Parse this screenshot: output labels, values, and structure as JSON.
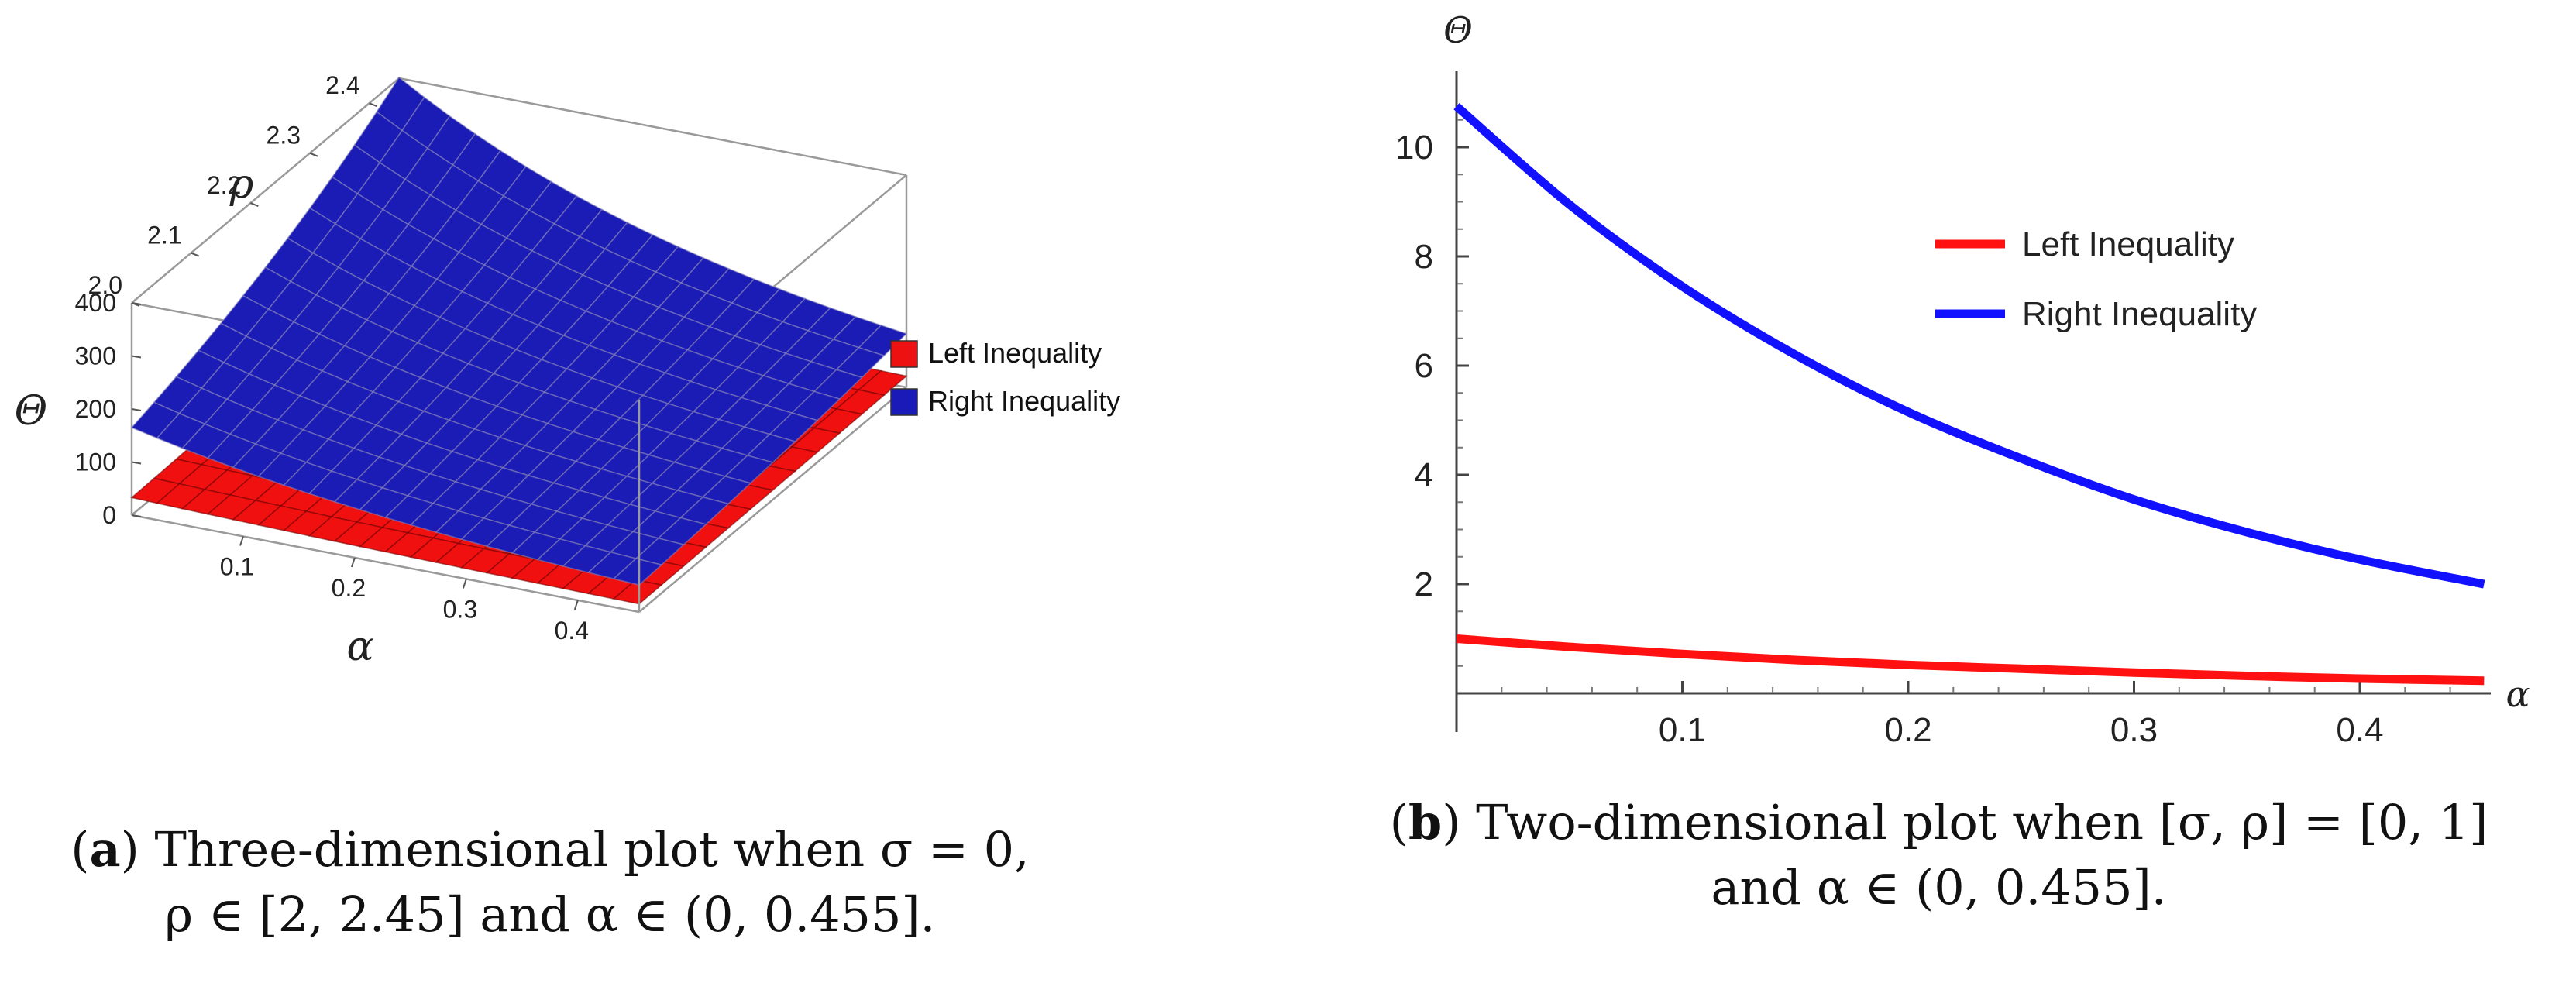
{
  "chart_data": [
    {
      "type": "surface",
      "panel_label": "a",
      "caption_line1": "Three-dimensional plot when σ = 0,",
      "caption_line2": "ρ ∈ [2, 2.45] and α ∈ (0, 0.455].",
      "x_axis": {
        "label": "α",
        "ticks": [
          "0.1",
          "0.2",
          "0.3",
          "0.4"
        ],
        "range": [
          0,
          0.455
        ]
      },
      "y_axis": {
        "label": "ρ",
        "ticks": [
          "2.0",
          "2.1",
          "2.2",
          "2.3",
          "2.4"
        ],
        "range": [
          2,
          2.45
        ]
      },
      "z_axis": {
        "label": "Θ",
        "ticks": [
          "0",
          "100",
          "200",
          "300",
          "400"
        ],
        "range": [
          0,
          400
        ]
      },
      "legend_position": "right",
      "series": [
        {
          "name": "Left Inequality",
          "color": "#ee1111"
        },
        {
          "name": "Right Inequality",
          "color": "#1a1ab8"
        }
      ]
    },
    {
      "type": "line",
      "panel_label": "b",
      "caption_line1": "Two-dimensional plot when [σ, ρ] = [0, 1]",
      "caption_line2": "and α ∈ (0, 0.455].",
      "xlabel": "α",
      "ylabel": "Θ",
      "xlim": [
        0,
        0.455
      ],
      "ylim": [
        0,
        11
      ],
      "x_ticks": [
        "0.1",
        "0.2",
        "0.3",
        "0.4"
      ],
      "y_ticks": [
        "2",
        "4",
        "6",
        "8",
        "10"
      ],
      "legend_position": "top-right",
      "x": [
        0.0,
        0.05,
        0.1,
        0.15,
        0.2,
        0.25,
        0.3,
        0.35,
        0.4,
        0.455
      ],
      "series": [
        {
          "name": "Left Inequality",
          "color": "#ff1111",
          "values": [
            1.0,
            0.85,
            0.72,
            0.61,
            0.52,
            0.45,
            0.38,
            0.32,
            0.27,
            0.23
          ]
        },
        {
          "name": "Right Inequality",
          "color": "#1111ff",
          "values": [
            10.75,
            8.95,
            7.45,
            6.2,
            5.15,
            4.3,
            3.55,
            2.95,
            2.45,
            2.0
          ]
        }
      ]
    }
  ]
}
